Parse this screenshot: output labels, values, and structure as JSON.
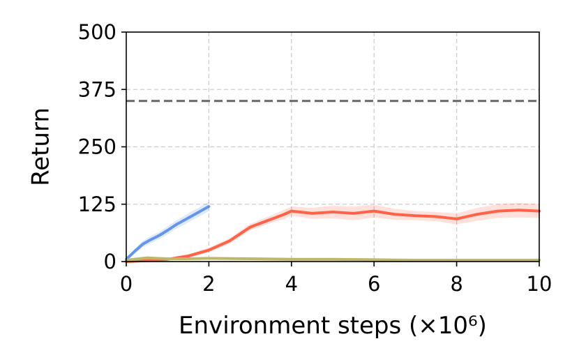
{
  "chart_data": {
    "type": "line",
    "title": "",
    "xlabel": "Environment steps (×10⁶)",
    "ylabel": "Return",
    "xlim": [
      0,
      10
    ],
    "ylim": [
      0,
      500
    ],
    "x_ticks": [
      "0",
      "2",
      "4",
      "6",
      "8",
      "10"
    ],
    "y_ticks": [
      "0",
      "125",
      "250",
      "375",
      "500"
    ],
    "grid": true,
    "legend": "none",
    "reference_line": {
      "y": 350,
      "color": "#666666",
      "style": "dashed"
    },
    "series": [
      {
        "color": "#6495ed",
        "x": [
          0,
          0.2,
          0.4,
          0.6,
          0.8,
          1.0,
          1.2,
          1.4,
          1.6,
          1.8,
          2.0
        ],
        "y": [
          5,
          22,
          38,
          48,
          57,
          68,
          80,
          90,
          100,
          110,
          120
        ],
        "band": [
          3,
          5,
          7,
          8,
          8,
          9,
          9,
          10,
          10,
          10,
          10
        ]
      },
      {
        "color": "#ff6347",
        "x": [
          0,
          0.5,
          1.0,
          1.5,
          2.0,
          2.5,
          3.0,
          3.5,
          3.8,
          4.0,
          4.5,
          5.0,
          5.5,
          6.0,
          6.5,
          7.0,
          7.5,
          8.0,
          8.5,
          9.0,
          9.5,
          10.0
        ],
        "y": [
          0,
          2,
          5,
          12,
          25,
          45,
          75,
          92,
          102,
          110,
          105,
          108,
          105,
          110,
          103,
          100,
          98,
          93,
          103,
          110,
          112,
          110
        ],
        "band": [
          1,
          2,
          3,
          4,
          5,
          6,
          7,
          8,
          10,
          10,
          12,
          14,
          15,
          14,
          12,
          10,
          10,
          12,
          14,
          15,
          16,
          15
        ]
      },
      {
        "color": "#bdb76b",
        "x": [
          0,
          0.5,
          1.0,
          1.5,
          2.0,
          3.0,
          4.0,
          5.0,
          6.0,
          7.0,
          8.0,
          9.0,
          10.0
        ],
        "y": [
          3,
          8,
          6,
          6,
          7,
          6,
          5,
          5,
          4,
          3,
          3,
          3,
          3
        ],
        "band": [
          2,
          4,
          3,
          3,
          3,
          3,
          3,
          3,
          2,
          2,
          2,
          2,
          2
        ]
      }
    ]
  }
}
